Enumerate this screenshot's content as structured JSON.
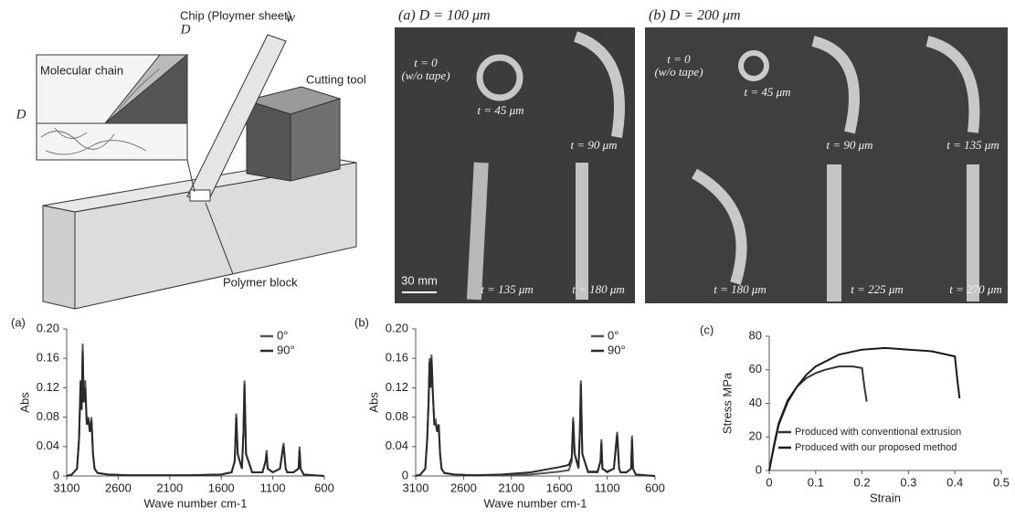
{
  "figure": {
    "diagram": {
      "labels": [
        "D",
        "w",
        "Chip (Ploymer sheet)",
        "Molecular chain",
        "D",
        "Cutting tool",
        "Polymer block"
      ]
    },
    "photos": [
      {
        "title": "(a) D = 100 μm",
        "labels": [
          "t = 0",
          "(w/o tape)",
          "t = 45 μm",
          "t = 90 μm",
          "t = 135 μm",
          "t = 180 μm"
        ],
        "scale": "30 mm"
      },
      {
        "title": "(b) D = 200 μm",
        "labels": [
          "t = 0",
          "(w/o tape)",
          "t = 45 μm",
          "t = 90 μm",
          "t = 135 μm",
          "t = 180 μm",
          "t = 225 μm",
          "t = 270 μm"
        ]
      }
    ]
  },
  "chart_data": [
    {
      "type": "line",
      "label": "(a)",
      "xlabel": "Wave number cm-1",
      "ylabel": "Abs",
      "x": [
        3100,
        3050,
        3000,
        2980,
        2965,
        2955,
        2945,
        2935,
        2920,
        2905,
        2890,
        2875,
        2860,
        2845,
        2830,
        2800,
        2700,
        2500,
        2200,
        1900,
        1600,
        1500,
        1470,
        1455,
        1440,
        1400,
        1385,
        1375,
        1360,
        1300,
        1200,
        1170,
        1160,
        1150,
        1100,
        1030,
        1000,
        995,
        975,
        960,
        900,
        850,
        840,
        830,
        800,
        700,
        600
      ],
      "series": [
        {
          "name": "0°",
          "color": "#555555",
          "values": [
            0,
            0.002,
            0.01,
            0.05,
            0.12,
            0.09,
            0.18,
            0.1,
            0.13,
            0.07,
            0.08,
            0.06,
            0.08,
            0.03,
            0.01,
            0.004,
            0.002,
            0.001,
            0.001,
            0.001,
            0.002,
            0.005,
            0.02,
            0.085,
            0.03,
            0.01,
            0.06,
            0.13,
            0.03,
            0.005,
            0.005,
            0.02,
            0.035,
            0.01,
            0.005,
            0.01,
            0.04,
            0.045,
            0.01,
            0.005,
            0.005,
            0.01,
            0.04,
            0.01,
            0.002,
            0.001,
            0
          ]
        },
        {
          "name": "90°",
          "color": "#2a2a2a",
          "values": [
            0,
            0.002,
            0.01,
            0.05,
            0.13,
            0.09,
            0.17,
            0.1,
            0.12,
            0.07,
            0.075,
            0.06,
            0.075,
            0.03,
            0.01,
            0.004,
            0.002,
            0.001,
            0.001,
            0.001,
            0.002,
            0.005,
            0.02,
            0.08,
            0.03,
            0.01,
            0.06,
            0.125,
            0.03,
            0.005,
            0.005,
            0.02,
            0.03,
            0.01,
            0.005,
            0.01,
            0.04,
            0.04,
            0.01,
            0.005,
            0.005,
            0.01,
            0.035,
            0.01,
            0.002,
            0.001,
            0
          ]
        }
      ],
      "xlim": [
        3100,
        600
      ],
      "xticks": [
        3100,
        2600,
        2100,
        1600,
        1100,
        600
      ],
      "ylim": [
        0,
        0.2
      ],
      "yticks": [
        0,
        0.04,
        0.08,
        0.12,
        0.16,
        {
          "value": 0.2,
          "label": "0.20"
        }
      ],
      "legend": "upper right"
    },
    {
      "type": "line",
      "label": "(b)",
      "xlabel": "Wave number cm-1",
      "ylabel": "Abs",
      "x": [
        3100,
        3050,
        3000,
        2980,
        2965,
        2955,
        2945,
        2935,
        2920,
        2905,
        2890,
        2875,
        2860,
        2845,
        2830,
        2800,
        2700,
        2500,
        2200,
        1900,
        1600,
        1500,
        1470,
        1455,
        1440,
        1400,
        1385,
        1375,
        1360,
        1300,
        1200,
        1170,
        1160,
        1150,
        1100,
        1030,
        1000,
        995,
        975,
        960,
        900,
        850,
        840,
        830,
        800,
        700,
        600
      ],
      "series": [
        {
          "name": "0°",
          "color": "#555555",
          "values": [
            0,
            0.002,
            0.01,
            0.05,
            0.1,
            0.16,
            0.12,
            0.165,
            0.11,
            0.07,
            0.075,
            0.06,
            0.07,
            0.03,
            0.01,
            0.004,
            0.002,
            0.001,
            0.001,
            0.002,
            0.006,
            0.008,
            0.02,
            0.08,
            0.03,
            0.01,
            0.06,
            0.13,
            0.03,
            0.005,
            0.005,
            0.02,
            0.05,
            0.01,
            0.005,
            0.01,
            0.055,
            0.06,
            0.01,
            0.005,
            0.005,
            0.01,
            0.055,
            0.01,
            0.002,
            0.001,
            0
          ]
        },
        {
          "name": "90°",
          "color": "#2a2a2a",
          "values": [
            0,
            0.002,
            0.01,
            0.05,
            0.1,
            0.155,
            0.12,
            0.16,
            0.11,
            0.07,
            0.07,
            0.06,
            0.07,
            0.03,
            0.01,
            0.004,
            0.002,
            0.001,
            0.002,
            0.005,
            0.012,
            0.015,
            0.025,
            0.075,
            0.03,
            0.012,
            0.06,
            0.125,
            0.03,
            0.006,
            0.006,
            0.02,
            0.045,
            0.01,
            0.006,
            0.01,
            0.05,
            0.055,
            0.01,
            0.005,
            0.005,
            0.01,
            0.05,
            0.01,
            0.002,
            0.001,
            0
          ]
        }
      ],
      "xlim": [
        3100,
        600
      ],
      "xticks": [
        3100,
        2600,
        2100,
        1600,
        1100,
        600
      ],
      "ylim": [
        0,
        0.2
      ],
      "yticks": [
        0,
        0.04,
        0.08,
        0.12,
        0.16,
        {
          "value": 0.2,
          "label": "0.20"
        }
      ],
      "legend": "upper right"
    },
    {
      "type": "line",
      "label": "(c)",
      "xlabel": "Strain",
      "ylabel": "Stress MPa",
      "series": [
        {
          "name": "Produced with conventional extrusion",
          "color": "#333333",
          "x": [
            0,
            0.01,
            0.02,
            0.04,
            0.06,
            0.08,
            0.1,
            0.12,
            0.15,
            0.18,
            0.2,
            0.205,
            0.21
          ],
          "values": [
            0,
            15,
            28,
            42,
            50,
            55,
            58,
            60,
            62,
            62,
            61,
            50,
            41
          ]
        },
        {
          "name": "Produced with our proposed method",
          "color": "#1a1a1a",
          "x": [
            0,
            0.01,
            0.02,
            0.04,
            0.06,
            0.08,
            0.1,
            0.15,
            0.2,
            0.25,
            0.3,
            0.35,
            0.4,
            0.405,
            0.41
          ],
          "values": [
            0,
            14,
            27,
            41,
            50,
            57,
            62,
            69,
            72,
            73,
            72,
            71,
            68,
            55,
            43
          ]
        }
      ],
      "xlim": [
        0,
        0.5
      ],
      "xticks": [
        0,
        0.1,
        0.2,
        0.3,
        0.4,
        0.5
      ],
      "ylim": [
        0,
        80
      ],
      "yticks": [
        0,
        20,
        40,
        60,
        80
      ],
      "legend": "lower right"
    }
  ]
}
